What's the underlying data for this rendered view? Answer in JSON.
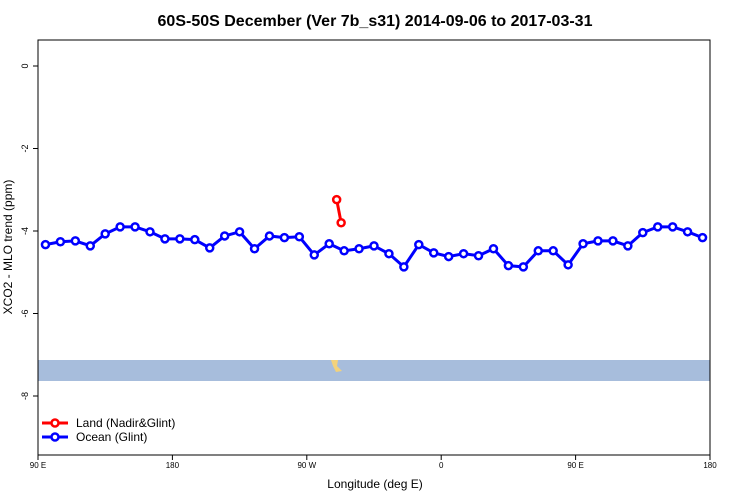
{
  "chart_data": {
    "type": "line",
    "title": "60S-50S December (Ver 7b_s31)   2014-09-06 to 2017-03-31",
    "x_label": "Longitude (deg E)",
    "y_label": "XCO2 - MLO trend (ppm)",
    "xlim": [
      90,
      540
    ],
    "ylim": [
      -9.43,
      0.63
    ],
    "xticks": [
      {
        "value": 90,
        "label": "90 E"
      },
      180,
      {
        "value": 270,
        "label": "90 W"
      },
      {
        "value": 360,
        "label": "0"
      },
      {
        "value": 450,
        "label": "90 E"
      },
      {
        "value": 540,
        "label": "180"
      }
    ],
    "yticks": [
      0,
      -2,
      -4,
      -6,
      -8
    ],
    "legend": "bottom left",
    "series": [
      {
        "name": "Land (Nadir&Glint)",
        "color": "#ff0000",
        "x": [
          290,
          293
        ],
        "values": [
          -3.24,
          -3.8
        ]
      },
      {
        "name": "Ocean (Glint)",
        "color": "#0000ff",
        "x": [
          95,
          105,
          115,
          125,
          135,
          145,
          155,
          165,
          175,
          185,
          195,
          205,
          215,
          225,
          235,
          245,
          255,
          265,
          275,
          285,
          295,
          305,
          315,
          325,
          335,
          345,
          355,
          365,
          375,
          385,
          395,
          405,
          415,
          425,
          435,
          445,
          455,
          465,
          475,
          485,
          495,
          505,
          515,
          525,
          535
        ],
        "values": [
          -4.33,
          -4.26,
          -4.24,
          -4.36,
          -4.07,
          -3.9,
          -3.9,
          -4.02,
          -4.19,
          -4.19,
          -4.21,
          -4.41,
          -4.12,
          -4.02,
          -4.43,
          -4.12,
          -4.16,
          -4.14,
          -4.58,
          -4.31,
          -4.48,
          -4.43,
          -4.36,
          -4.55,
          -4.87,
          -4.33,
          -4.53,
          -4.62,
          -4.55,
          -4.6,
          -4.43,
          -4.84,
          -4.87,
          -4.48,
          -4.48,
          -4.82,
          -4.31,
          -4.24,
          -4.24,
          -4.36,
          -4.04,
          -3.9,
          -3.9,
          -4.02,
          -4.16
        ]
      }
    ]
  }
}
